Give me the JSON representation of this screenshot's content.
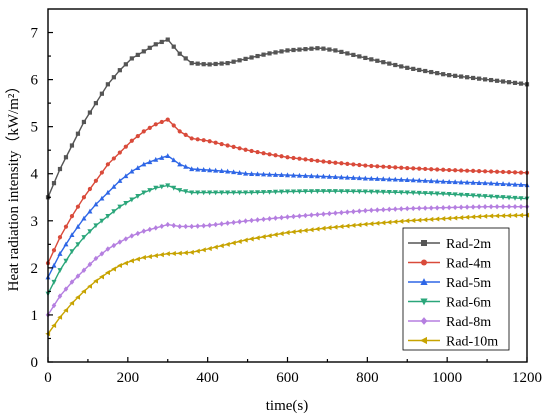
{
  "chart_data": {
    "type": "line",
    "title": "",
    "xlabel": "time(s)",
    "ylabel": "Heat radiation intensity（kW/m²）",
    "xlim": [
      0,
      1200
    ],
    "ylim": [
      0,
      7.5
    ],
    "xticks": [
      "0",
      "200",
      "400",
      "600",
      "800",
      "1000",
      "1200"
    ],
    "yticks": [
      "0",
      "1",
      "2",
      "3",
      "4",
      "5",
      "6",
      "7"
    ],
    "grid": false,
    "legend_position": "bottom-right",
    "series": [
      {
        "name": "Rad-2m",
        "color": "#555555",
        "marker": "square",
        "points": [
          [
            0,
            3.5
          ],
          [
            30,
            4.1
          ],
          [
            60,
            4.6
          ],
          [
            90,
            5.1
          ],
          [
            120,
            5.5
          ],
          [
            150,
            5.9
          ],
          [
            180,
            6.2
          ],
          [
            210,
            6.45
          ],
          [
            240,
            6.6
          ],
          [
            270,
            6.75
          ],
          [
            300,
            6.85
          ],
          [
            330,
            6.55
          ],
          [
            360,
            6.35
          ],
          [
            400,
            6.32
          ],
          [
            450,
            6.35
          ],
          [
            500,
            6.45
          ],
          [
            550,
            6.55
          ],
          [
            600,
            6.62
          ],
          [
            650,
            6.65
          ],
          [
            680,
            6.67
          ],
          [
            720,
            6.62
          ],
          [
            800,
            6.45
          ],
          [
            900,
            6.25
          ],
          [
            1000,
            6.1
          ],
          [
            1100,
            6.0
          ],
          [
            1200,
            5.9
          ]
        ]
      },
      {
        "name": "Rad-4m",
        "color": "#d94a3a",
        "marker": "circle",
        "points": [
          [
            0,
            2.1
          ],
          [
            30,
            2.65
          ],
          [
            60,
            3.1
          ],
          [
            90,
            3.5
          ],
          [
            120,
            3.85
          ],
          [
            150,
            4.2
          ],
          [
            180,
            4.45
          ],
          [
            210,
            4.7
          ],
          [
            240,
            4.9
          ],
          [
            270,
            5.05
          ],
          [
            300,
            5.15
          ],
          [
            330,
            4.9
          ],
          [
            360,
            4.75
          ],
          [
            400,
            4.7
          ],
          [
            450,
            4.6
          ],
          [
            500,
            4.5
          ],
          [
            550,
            4.42
          ],
          [
            600,
            4.35
          ],
          [
            700,
            4.25
          ],
          [
            800,
            4.17
          ],
          [
            900,
            4.12
          ],
          [
            1000,
            4.08
          ],
          [
            1100,
            4.05
          ],
          [
            1200,
            4.02
          ]
        ]
      },
      {
        "name": "Rad-5m",
        "color": "#2e66e6",
        "marker": "triangle-up",
        "points": [
          [
            0,
            1.8
          ],
          [
            30,
            2.3
          ],
          [
            60,
            2.7
          ],
          [
            90,
            3.05
          ],
          [
            120,
            3.35
          ],
          [
            150,
            3.6
          ],
          [
            180,
            3.85
          ],
          [
            210,
            4.05
          ],
          [
            240,
            4.2
          ],
          [
            270,
            4.3
          ],
          [
            300,
            4.38
          ],
          [
            330,
            4.2
          ],
          [
            360,
            4.1
          ],
          [
            400,
            4.08
          ],
          [
            450,
            4.05
          ],
          [
            500,
            4.0
          ],
          [
            600,
            3.97
          ],
          [
            700,
            3.94
          ],
          [
            800,
            3.9
          ],
          [
            900,
            3.87
          ],
          [
            1000,
            3.83
          ],
          [
            1100,
            3.8
          ],
          [
            1200,
            3.76
          ]
        ]
      },
      {
        "name": "Rad-6m",
        "color": "#2aa67a",
        "marker": "triangle-down",
        "points": [
          [
            0,
            1.45
          ],
          [
            30,
            1.95
          ],
          [
            60,
            2.35
          ],
          [
            90,
            2.65
          ],
          [
            120,
            2.9
          ],
          [
            150,
            3.1
          ],
          [
            180,
            3.3
          ],
          [
            210,
            3.45
          ],
          [
            240,
            3.6
          ],
          [
            270,
            3.7
          ],
          [
            300,
            3.75
          ],
          [
            330,
            3.65
          ],
          [
            360,
            3.6
          ],
          [
            400,
            3.6
          ],
          [
            500,
            3.6
          ],
          [
            600,
            3.62
          ],
          [
            700,
            3.63
          ],
          [
            800,
            3.62
          ],
          [
            900,
            3.6
          ],
          [
            1000,
            3.57
          ],
          [
            1100,
            3.52
          ],
          [
            1200,
            3.47
          ]
        ]
      },
      {
        "name": "Rad-8m",
        "color": "#b57fe0",
        "marker": "diamond",
        "points": [
          [
            0,
            1.0
          ],
          [
            30,
            1.4
          ],
          [
            60,
            1.7
          ],
          [
            90,
            1.95
          ],
          [
            120,
            2.2
          ],
          [
            150,
            2.4
          ],
          [
            180,
            2.55
          ],
          [
            210,
            2.68
          ],
          [
            240,
            2.78
          ],
          [
            270,
            2.85
          ],
          [
            300,
            2.92
          ],
          [
            330,
            2.88
          ],
          [
            360,
            2.88
          ],
          [
            400,
            2.9
          ],
          [
            450,
            2.95
          ],
          [
            500,
            3.0
          ],
          [
            600,
            3.08
          ],
          [
            700,
            3.15
          ],
          [
            800,
            3.22
          ],
          [
            900,
            3.26
          ],
          [
            1000,
            3.28
          ],
          [
            1100,
            3.3
          ],
          [
            1200,
            3.3
          ]
        ]
      },
      {
        "name": "Rad-10m",
        "color": "#c7a300",
        "marker": "triangle-left",
        "points": [
          [
            0,
            0.6
          ],
          [
            30,
            0.95
          ],
          [
            60,
            1.25
          ],
          [
            90,
            1.5
          ],
          [
            120,
            1.72
          ],
          [
            150,
            1.9
          ],
          [
            180,
            2.05
          ],
          [
            210,
            2.15
          ],
          [
            240,
            2.22
          ],
          [
            270,
            2.26
          ],
          [
            300,
            2.3
          ],
          [
            330,
            2.31
          ],
          [
            360,
            2.33
          ],
          [
            400,
            2.4
          ],
          [
            450,
            2.5
          ],
          [
            500,
            2.6
          ],
          [
            600,
            2.75
          ],
          [
            700,
            2.85
          ],
          [
            800,
            2.93
          ],
          [
            900,
            3.0
          ],
          [
            1000,
            3.05
          ],
          [
            1100,
            3.1
          ],
          [
            1200,
            3.12
          ]
        ]
      }
    ]
  }
}
